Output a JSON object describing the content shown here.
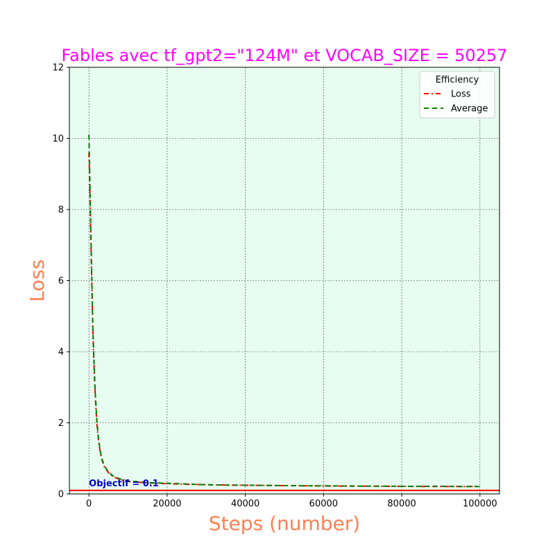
{
  "chart_data": {
    "type": "line",
    "title": "Fables avec tf_gpt2=\"124M\" et VOCAB_SIZE = 50257",
    "xlabel": "Steps (number)",
    "ylabel": "Loss",
    "xlim": [
      -5000,
      105000
    ],
    "ylim": [
      0,
      12
    ],
    "xticks": [
      0,
      20000,
      40000,
      60000,
      80000,
      100000
    ],
    "xtick_labels": [
      "0",
      "20000",
      "40000",
      "60000",
      "80000",
      "100000"
    ],
    "yticks": [
      0,
      2,
      4,
      6,
      8,
      10,
      12
    ],
    "ytick_labels": [
      "0",
      "2",
      "4",
      "6",
      "8",
      "10",
      "12"
    ],
    "grid": true,
    "legend": {
      "title": "Efficiency",
      "placement": "top-right",
      "entries": [
        "Loss",
        "Average"
      ]
    },
    "series": [
      {
        "name": "Loss",
        "color": "#ff0000",
        "style": "dashdot",
        "x": [
          0,
          200,
          400,
          600,
          800,
          1000,
          1300,
          1600,
          2000,
          2500,
          3000,
          3500,
          4000,
          5000,
          6000,
          8000,
          10000,
          15000,
          20000,
          25000,
          30000,
          35000,
          40000,
          45000,
          50000,
          55000,
          60000,
          65000,
          70000,
          75000,
          80000,
          85000,
          90000,
          95000,
          100000
        ],
        "y": [
          9.6,
          8.8,
          7.6,
          6.6,
          5.6,
          4.6,
          3.6,
          2.8,
          2.0,
          1.45,
          1.1,
          0.9,
          0.75,
          0.6,
          0.5,
          0.4,
          0.35,
          0.31,
          0.29,
          0.27,
          0.26,
          0.25,
          0.245,
          0.24,
          0.235,
          0.23,
          0.225,
          0.22,
          0.22,
          0.215,
          0.215,
          0.21,
          0.21,
          0.21,
          0.21
        ]
      },
      {
        "name": "Average",
        "color": "#008000",
        "style": "dashed",
        "x": [
          0,
          200,
          400,
          600,
          800,
          1000,
          1300,
          1600,
          2000,
          2500,
          3000,
          3500,
          4000,
          5000,
          6000,
          8000,
          10000,
          15000,
          20000,
          25000,
          30000,
          35000,
          40000,
          45000,
          50000,
          55000,
          60000,
          65000,
          70000,
          75000,
          80000,
          85000,
          90000,
          95000,
          100000
        ],
        "y": [
          10.1,
          9.1,
          7.9,
          6.8,
          5.7,
          4.7,
          3.7,
          2.9,
          2.1,
          1.5,
          1.15,
          0.93,
          0.78,
          0.62,
          0.52,
          0.42,
          0.37,
          0.32,
          0.3,
          0.28,
          0.26,
          0.25,
          0.245,
          0.24,
          0.235,
          0.23,
          0.23,
          0.225,
          0.22,
          0.22,
          0.215,
          0.215,
          0.215,
          0.21,
          0.21
        ]
      }
    ],
    "objective": {
      "value": 0.1,
      "color": "#ff0000",
      "label": "Objectif = 0.1",
      "label_color": "#0000cc"
    },
    "colors": {
      "title": "#ff00ff",
      "axis_label": "#ff7f50",
      "plot_background": "#e8fdf2",
      "grid": "#333333"
    }
  }
}
